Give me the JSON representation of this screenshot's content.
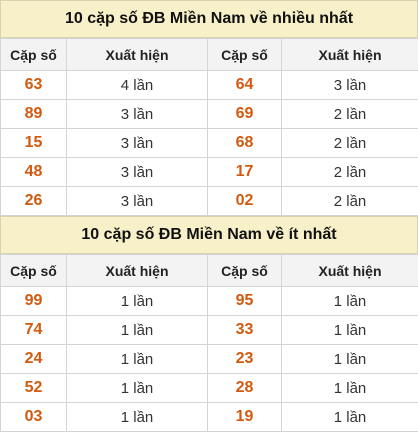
{
  "most": {
    "title": "10 cặp số ĐB Miền Nam về nhiều nhất",
    "headers": [
      "Cặp số",
      "Xuất hiện",
      "Cặp số",
      "Xuất hiện"
    ],
    "rows": [
      [
        "63",
        "4 lần",
        "64",
        "3 lần"
      ],
      [
        "89",
        "3 lần",
        "69",
        "2 lần"
      ],
      [
        "15",
        "3 lần",
        "68",
        "2 lần"
      ],
      [
        "48",
        "3 lần",
        "17",
        "2 lần"
      ],
      [
        "26",
        "3 lần",
        "02",
        "2 lần"
      ]
    ]
  },
  "least": {
    "title": "10 cặp số ĐB Miền Nam về ít nhất",
    "headers": [
      "Cặp số",
      "Xuất hiện",
      "Cặp số",
      "Xuất hiện"
    ],
    "rows": [
      [
        "99",
        "1 lần",
        "95",
        "1 lần"
      ],
      [
        "74",
        "1 lần",
        "33",
        "1 lần"
      ],
      [
        "24",
        "1 lần",
        "23",
        "1 lần"
      ],
      [
        "52",
        "1 lần",
        "28",
        "1 lần"
      ],
      [
        "03",
        "1 lần",
        "19",
        "1 lần"
      ]
    ]
  },
  "colors": {
    "number": "#d25a0f",
    "title_bg": "#f7f0c8",
    "header_bg": "#f3f3f3"
  }
}
